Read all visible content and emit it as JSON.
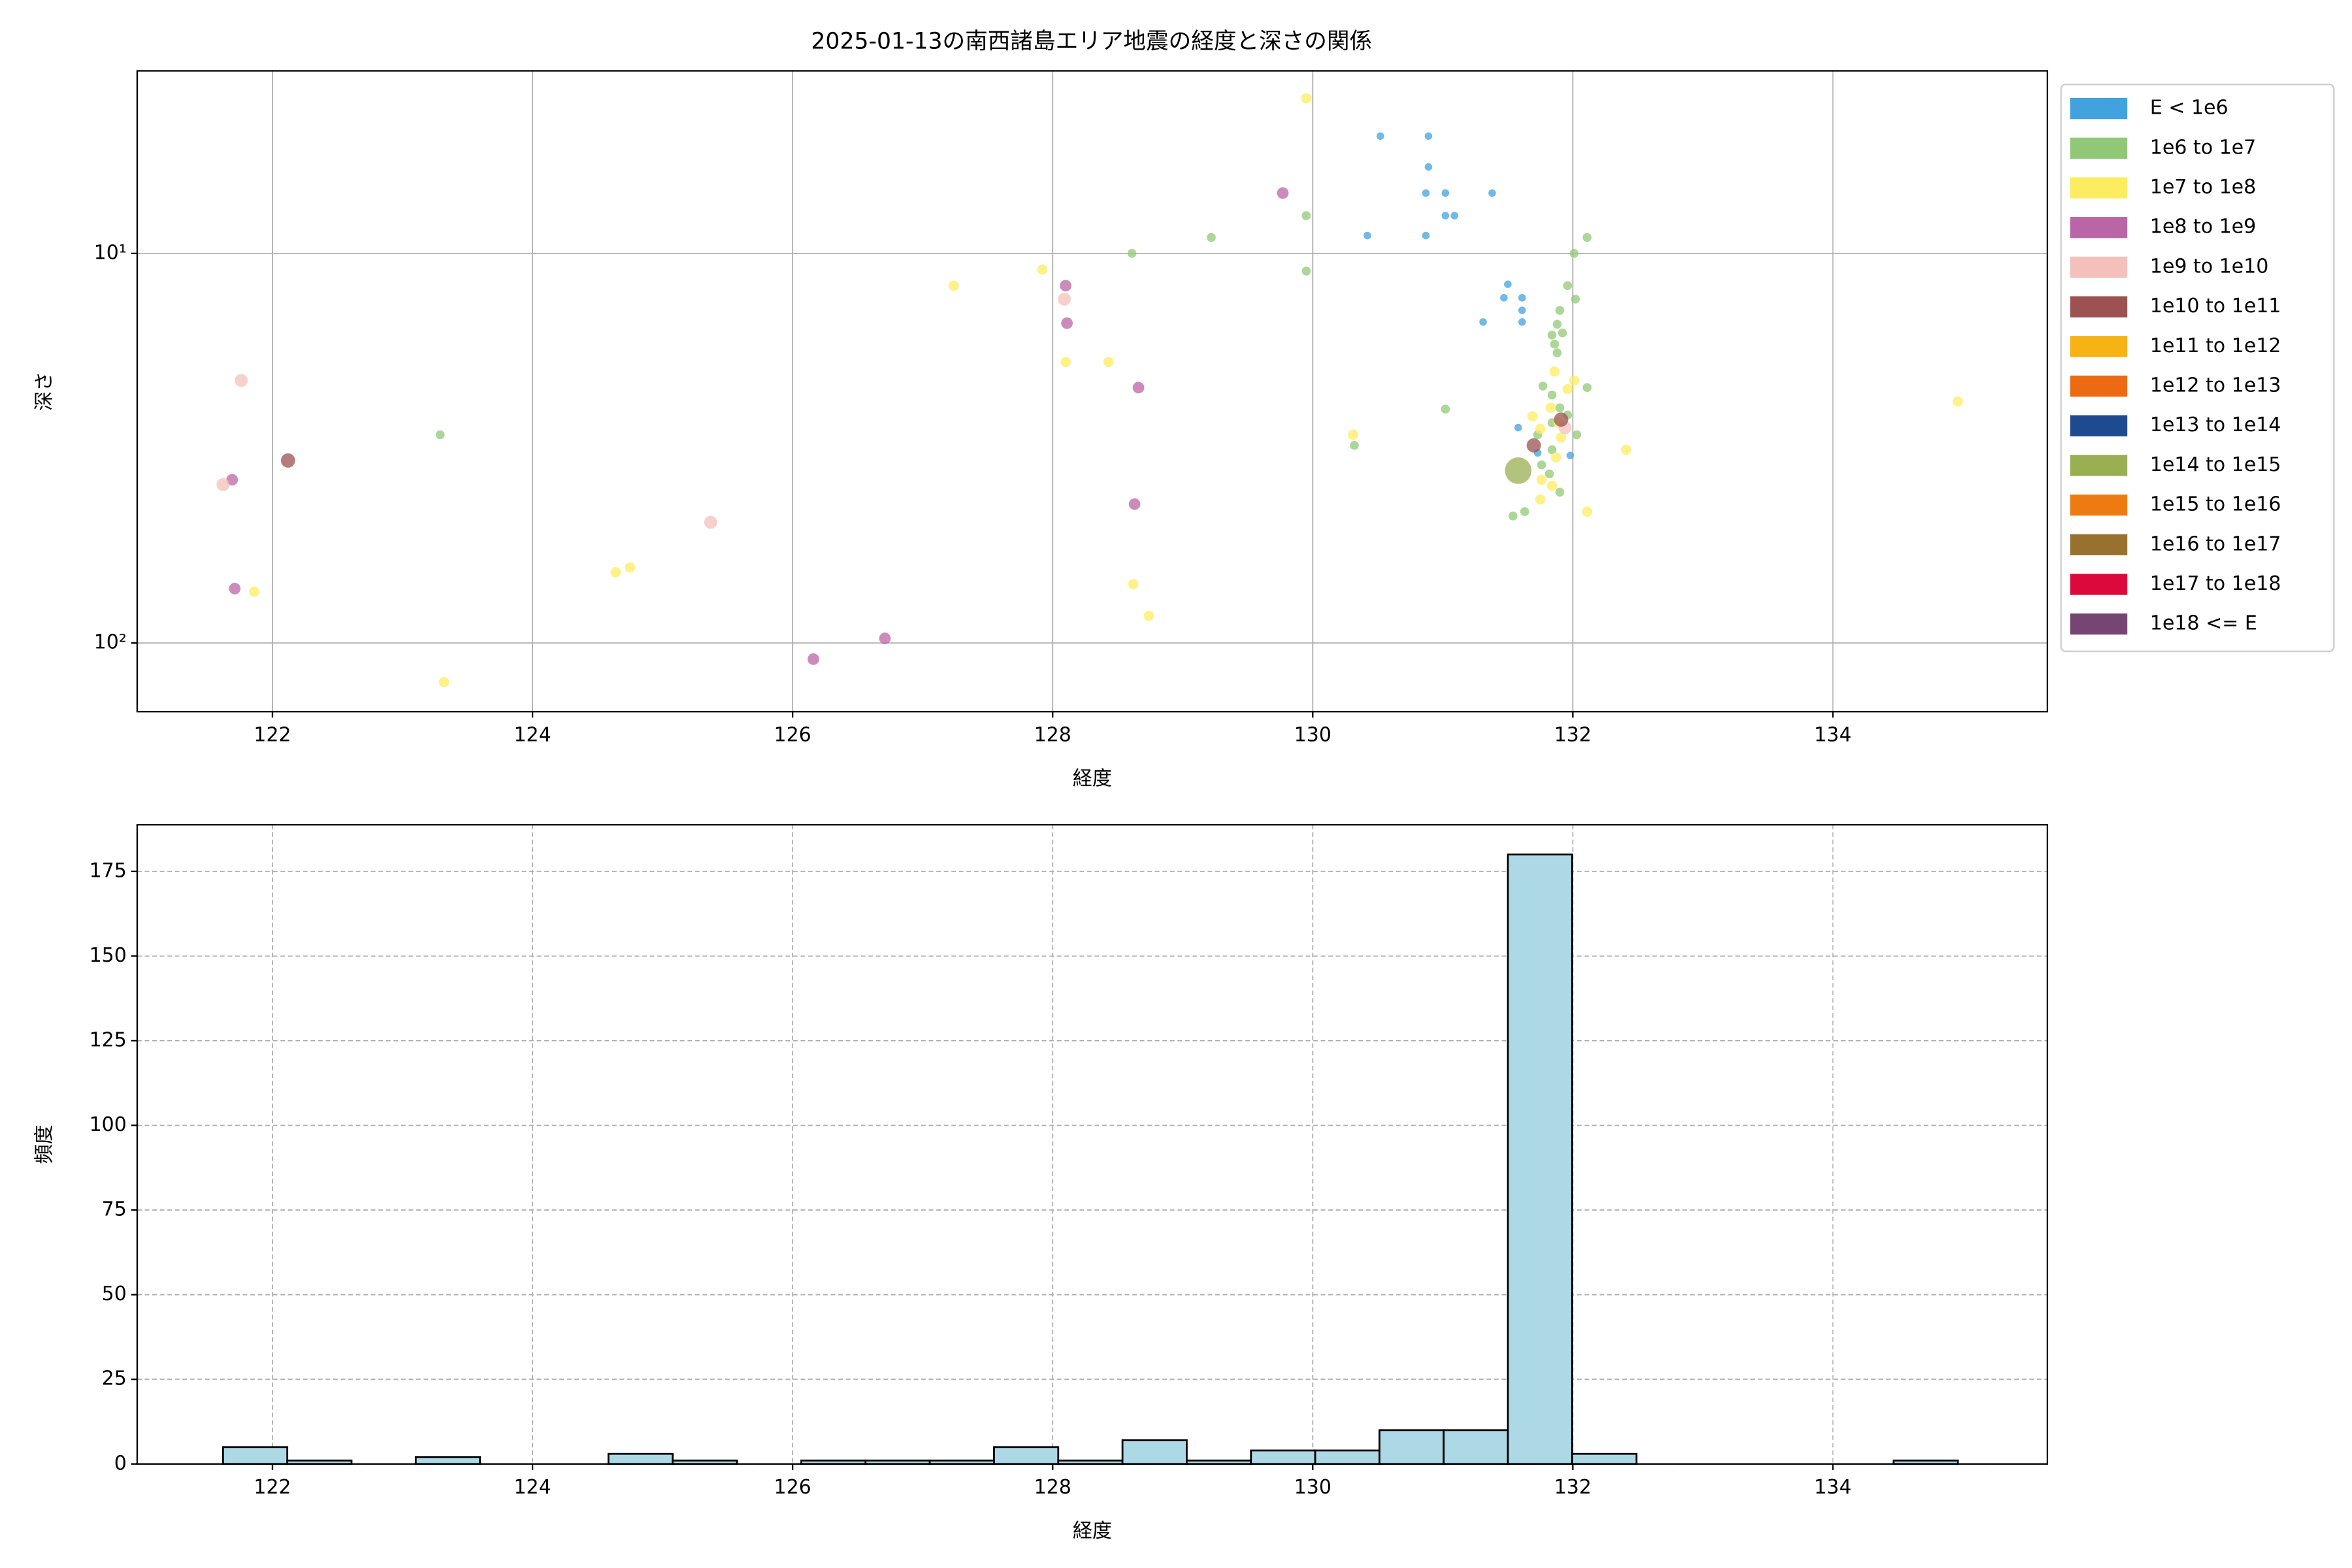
{
  "chart_data": [
    {
      "type": "scatter",
      "title": "2025-01-13の南西諸島エリア地震の経度と深さの関係",
      "xlabel": "経度",
      "ylabel": "深さ",
      "xlim": [
        120.96,
        135.65
      ],
      "xticks": [
        122,
        124,
        126,
        128,
        130,
        132,
        134
      ],
      "ylim": [
        150,
        3.4
      ],
      "y_scale": "log",
      "yticks": [
        {
          "value": 10,
          "label": "10¹"
        },
        {
          "value": 100,
          "label": "10²"
        }
      ],
      "grid": true,
      "legend": "outside-right",
      "series": [
        {
          "name": "E < 1e6",
          "color": "#41a2dd",
          "x": [
            130.52,
            130.89,
            130.89,
            130.87,
            131.02,
            131.38,
            131.02,
            131.09,
            130.42,
            130.87,
            131.5,
            131.47,
            131.61,
            131.61,
            131.61,
            131.31,
            131.58,
            131.98,
            131.73
          ],
          "values": [
            5.0,
            5.0,
            6.0,
            7.0,
            7.0,
            7.0,
            8.0,
            8.0,
            9.0,
            9.0,
            12.0,
            13.0,
            13.0,
            14.0,
            15.0,
            15.0,
            28,
            33,
            32.5
          ]
        },
        {
          "name": "1e6 to 1e7",
          "color": "#91c877",
          "x": [
            128.61,
            129.22,
            129.95,
            129.95,
            132.01,
            132.11,
            131.96,
            132.02,
            131.9,
            131.88,
            131.92,
            131.84,
            131.86,
            131.88,
            131.02,
            132.11,
            131.77,
            131.84,
            131.9,
            131.96,
            131.84,
            131.73,
            131.84,
            131.76,
            131.82,
            131.9,
            131.63,
            131.54,
            123.29,
            130.32,
            132.03
          ],
          "values": [
            10,
            9.1,
            8,
            11.1,
            10,
            9.1,
            12.1,
            13.1,
            14,
            15.2,
            16,
            16.2,
            17.1,
            18,
            25.1,
            22.1,
            21.9,
            23.1,
            24.9,
            26,
            27.2,
            29.2,
            31.9,
            34.9,
            36.8,
            41,
            46,
            47.2,
            29.2,
            31.1,
            29.2
          ]
        },
        {
          "name": "1e7 to 1e8",
          "color": "#fdec60",
          "x": [
            129.95,
            127.24,
            127.92,
            128.1,
            128.43,
            130.31,
            134.96,
            132.41,
            132.11,
            131.75,
            131.84,
            131.76,
            131.86,
            132.01,
            131.96,
            131.83,
            131.89,
            131.91,
            131.87,
            131.69,
            131.75,
            123.32,
            121.86,
            124.64,
            124.75,
            128.62,
            128.74
          ],
          "values": [
            4.0,
            12.1,
            11.0,
            19.0,
            19.0,
            29.2,
            24.0,
            31.9,
            46.0,
            42.8,
            39.5,
            38.1,
            20.1,
            21.2,
            22.3,
            24.9,
            27.2,
            29.7,
            33.4,
            26.2,
            28.2,
            126,
            73.8,
            65.8,
            64.0,
            70.6,
            85.1
          ]
        },
        {
          "name": "1e8 to 1e9",
          "color": "#b965a6",
          "x": [
            129.77,
            128.1,
            128.11,
            128.66,
            128.63,
            121.69,
            121.71,
            126.16,
            126.71
          ],
          "values": [
            7.0,
            12.1,
            15.1,
            22.1,
            44.0,
            38.1,
            72.5,
            110,
            97.3
          ]
        },
        {
          "name": "1e9 to 1e10",
          "color": "#f4c0bb",
          "x": [
            121.76,
            121.62,
            125.37,
            128.09,
            131.94
          ],
          "values": [
            21.2,
            39.2,
            49.0,
            13.1,
            28.0
          ]
        },
        {
          "name": "1e10 to 1e11",
          "color": "#9b5250",
          "x": [
            122.12,
            131.7,
            131.91
          ],
          "values": [
            34,
            31.1,
            26.7
          ]
        },
        {
          "name": "1e11 to 1e12",
          "color": "#f7b213",
          "x": [],
          "values": []
        },
        {
          "name": "1e12 to 1e13",
          "color": "#ec6a12",
          "x": [],
          "values": []
        },
        {
          "name": "1e13 to 1e14",
          "color": "#1e4b90",
          "x": [],
          "values": []
        },
        {
          "name": "1e14 to 1e15",
          "color": "#9aae52",
          "x": [
            131.58
          ],
          "values": [
            36.1
          ]
        },
        {
          "name": "1e15 to 1e16",
          "color": "#ee7b11",
          "x": [],
          "values": []
        },
        {
          "name": "1e16 to 1e17",
          "color": "#97712d",
          "x": [],
          "values": []
        },
        {
          "name": "1e17 to 1e18",
          "color": "#dc0a3c",
          "x": [],
          "values": []
        },
        {
          "name": "1e18 <= E",
          "color": "#774571",
          "x": [],
          "values": []
        }
      ]
    },
    {
      "type": "histogram",
      "xlabel": "経度",
      "ylabel": "頻度",
      "color": "#add8e6",
      "edgecolor": "#000000",
      "xlim": [
        120.96,
        135.65
      ],
      "xticks": [
        122,
        124,
        126,
        128,
        130,
        132,
        134
      ],
      "ylim": [
        0,
        188.8
      ],
      "yticks": [
        0,
        25,
        50,
        75,
        100,
        125,
        150,
        175
      ],
      "grid": true,
      "grid_style": "dashed",
      "bins": [
        121.62,
        122.114,
        122.608,
        123.102,
        123.596,
        124.09,
        124.584,
        125.078,
        125.573,
        126.067,
        126.561,
        127.055,
        127.549,
        128.043,
        128.537,
        129.031,
        129.525,
        130.019,
        130.513,
        131.007,
        131.501,
        131.995,
        132.49,
        132.984,
        133.478,
        133.972,
        134.466,
        134.96
      ],
      "values": [
        5,
        1,
        0,
        2,
        0,
        0,
        3,
        1,
        0,
        1,
        1,
        1,
        5,
        1,
        7,
        1,
        4,
        4,
        10,
        10,
        180,
        3,
        0,
        0,
        0,
        0,
        1
      ]
    }
  ]
}
